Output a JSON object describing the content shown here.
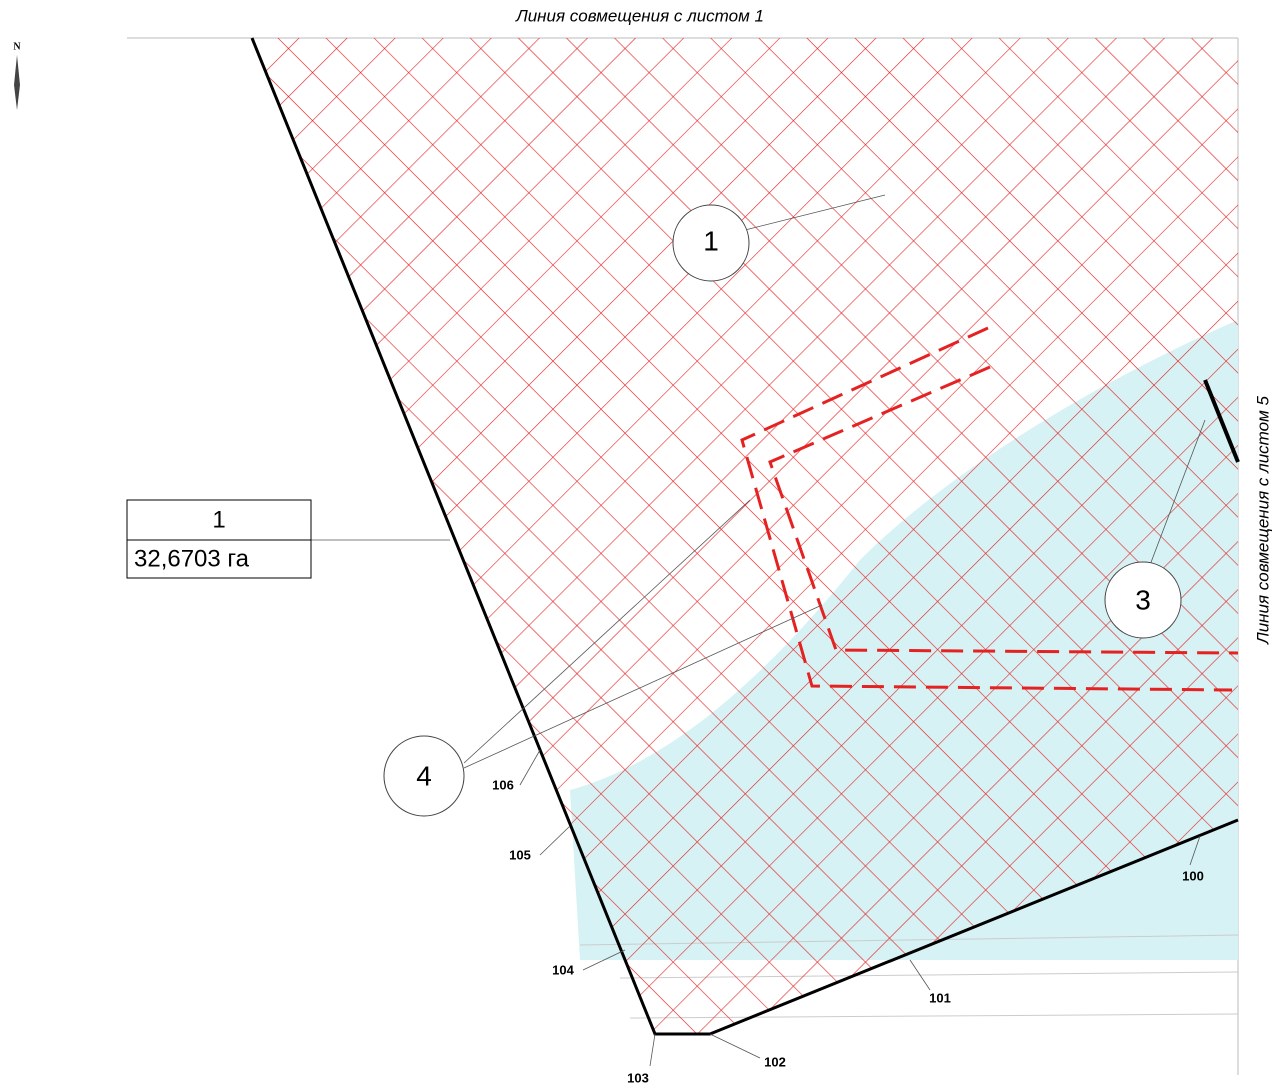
{
  "header": {
    "top_line": "Линия совмещения с листом 1",
    "right_line": "Линия совмещения с листом 5",
    "north": "N"
  },
  "parcel": {
    "number": "1",
    "area": "32,6703 га"
  },
  "zones": [
    {
      "label": "1"
    },
    {
      "label": "3"
    },
    {
      "label": "4"
    }
  ],
  "points": [
    "100",
    "101",
    "102",
    "103",
    "104",
    "105",
    "106"
  ]
}
